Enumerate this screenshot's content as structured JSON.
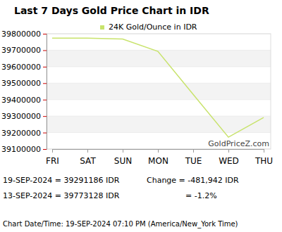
{
  "chart_data": {
    "type": "line",
    "title": "Last 7 Days Gold Price Chart in IDR",
    "categories": [
      "FRI",
      "SAT",
      "SUN",
      "MON",
      "TUE",
      "WED",
      "THU"
    ],
    "series": [
      {
        "name": "24K Gold/Ounce in IDR",
        "color": "#c8e36b",
        "values": [
          39773128,
          39773000,
          39768000,
          39693000,
          39432000,
          39172000,
          39291186
        ]
      }
    ],
    "ylim": [
      39100000,
      39800000
    ],
    "yticks": [
      39100000,
      39200000,
      39300000,
      39400000,
      39500000,
      39600000,
      39700000,
      39800000
    ],
    "grid": true,
    "legend": "top",
    "annotations": [
      "GoldPriceZ.com",
      "19-SEP-2024 = 39291186 IDR",
      "13-SEP-2024 = 39773128 IDR",
      "Change = -481,942 IDR",
      "= -1.2%",
      "Chart Date/Time: 19-SEP-2024 07:10 PM (America/New_York Time)"
    ]
  }
}
